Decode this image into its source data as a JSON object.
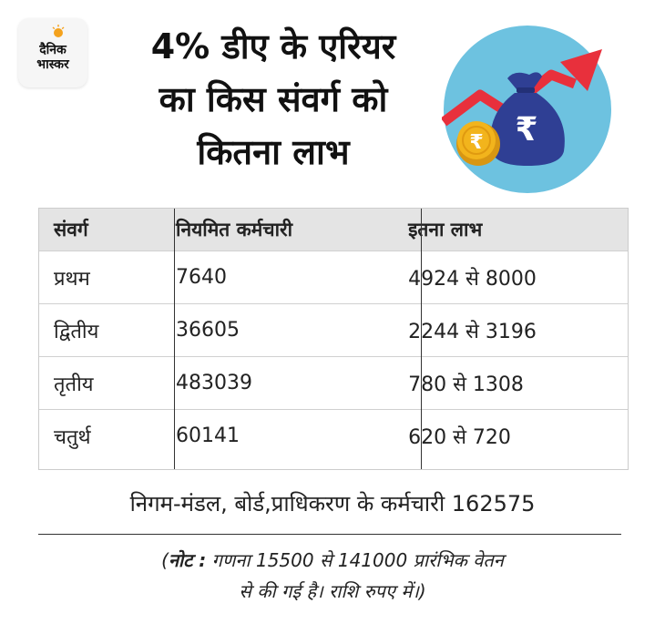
{
  "logo": {
    "line1": "दैनिक",
    "line2": "भास्कर"
  },
  "title": [
    "4% डीए के एरियर",
    "का किस संवर्ग को",
    "कितना लाभ"
  ],
  "colors": {
    "header_bg": "#e4e4e4",
    "circle": "#6dc2e0",
    "arrow": "#e8303c",
    "bag": "#2f3f94",
    "coin": "#f2b41c"
  },
  "table": {
    "headers": [
      "संवर्ग",
      "नियमित कर्मचारी",
      "इतना लाभ"
    ],
    "rows": [
      [
        "प्रथम",
        "7640",
        "4924 से 8000"
      ],
      [
        "द्वितीय",
        "36605",
        "2244 से 3196"
      ],
      [
        "तृतीय",
        "483039",
        "780 से 1308"
      ],
      [
        "चतुर्थ",
        "60141",
        "620 से 720"
      ]
    ]
  },
  "footer": "निगम-मंडल, बोर्ड,प्राधिकरण के कर्मचारी 162575",
  "note": {
    "label": "नोट :",
    "line1": "गणना 15500 से 141000 प्रारंभिक वेतन",
    "line2": "से की गई है। राशि रुपए में।)",
    "open": "("
  },
  "icons": [
    "sun-logo-icon",
    "rupee-bag-icon",
    "rupee-coin-icon",
    "growth-arrow-icon"
  ]
}
